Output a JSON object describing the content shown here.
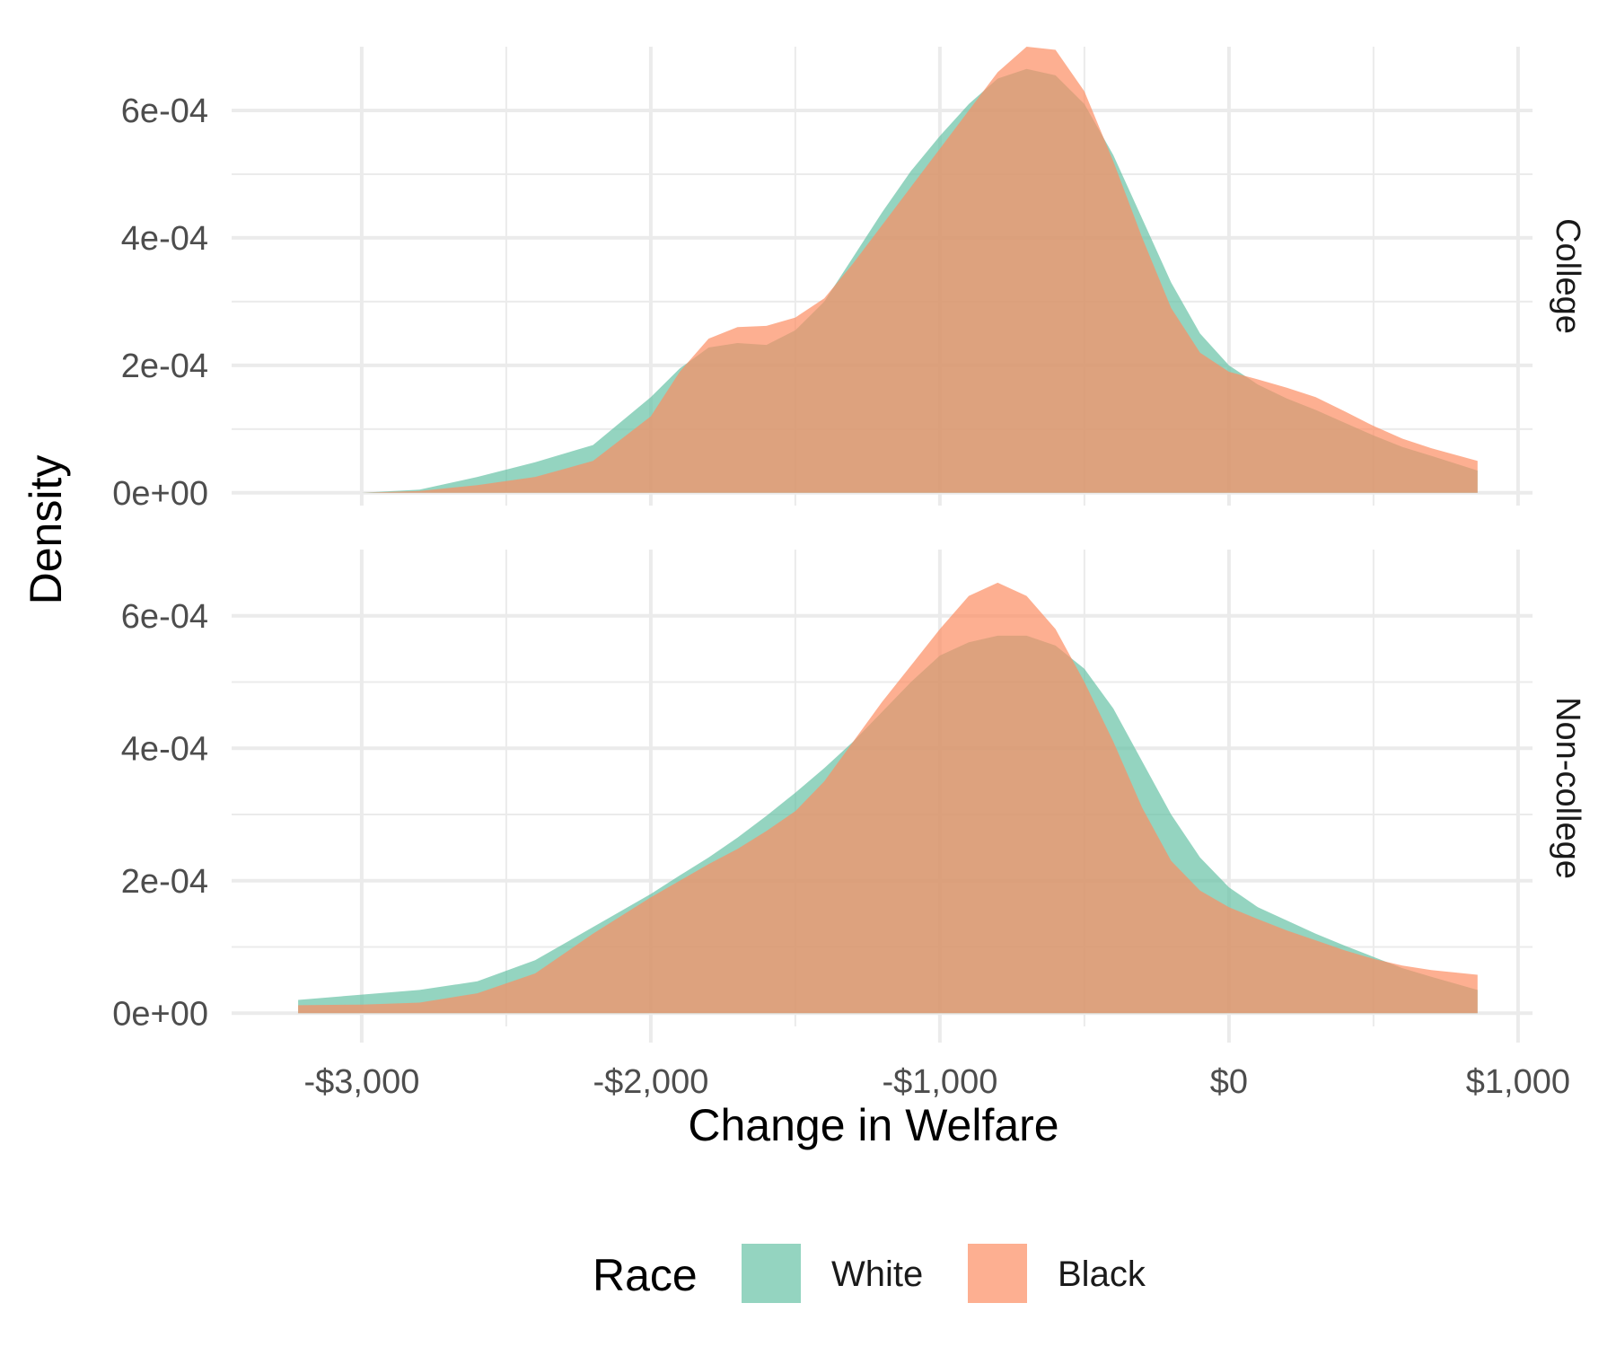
{
  "chart_data": {
    "type": "area",
    "subtype": "density",
    "xlabel": "Change in Welfare",
    "ylabel": "Density",
    "xlim": [
      -3450,
      1050
    ],
    "ylim": [
      -2e-05,
      0.0007
    ],
    "x_ticks": [
      -3000,
      -2000,
      -1000,
      0,
      1000
    ],
    "x_tick_labels": [
      "-$3,000",
      "-$2,000",
      "-$1,000",
      "$0",
      "$1,000"
    ],
    "y_ticks": [
      0,
      0.0002,
      0.0004,
      0.0006
    ],
    "y_tick_labels": [
      "0e+00",
      "2e-04",
      "4e-04",
      "6e-04"
    ],
    "legend": {
      "title": "Race",
      "position": "bottom",
      "entries": [
        {
          "label": "White",
          "color": "#66C2A5"
        },
        {
          "label": "Black",
          "color": "#FC8D62"
        }
      ]
    },
    "fill_alpha": 0.7,
    "facets": [
      {
        "label": "College",
        "series": [
          {
            "name": "White",
            "x": [
              -3000,
              -2800,
              -2600,
              -2400,
              -2200,
              -2000,
              -1900,
              -1800,
              -1700,
              -1600,
              -1500,
              -1400,
              -1300,
              -1200,
              -1100,
              -1000,
              -900,
              -800,
              -700,
              -600,
              -500,
              -400,
              -300,
              -200,
              -100,
              0,
              100,
              200,
              300,
              400,
              500,
              600,
              700,
              860
            ],
            "y": [
              0.0,
              5e-06,
              2.5e-05,
              4.8e-05,
              7.5e-05,
              0.00015,
              0.000195,
              0.000228,
              0.000235,
              0.000232,
              0.000255,
              0.0003,
              0.00037,
              0.00044,
              0.000505,
              0.00056,
              0.00061,
              0.00065,
              0.000665,
              0.000655,
              0.00061,
              0.00053,
              0.00043,
              0.00033,
              0.00025,
              0.0002,
              0.00017,
              0.000148,
              0.00013,
              0.00011,
              9e-05,
              7.2e-05,
              5.8e-05,
              3.5e-05
            ]
          },
          {
            "name": "Black",
            "x": [
              -3000,
              -2800,
              -2600,
              -2400,
              -2200,
              -2000,
              -1900,
              -1800,
              -1700,
              -1600,
              -1500,
              -1400,
              -1300,
              -1200,
              -1100,
              -1000,
              -900,
              -800,
              -700,
              -600,
              -500,
              -400,
              -300,
              -200,
              -100,
              0,
              100,
              200,
              300,
              400,
              500,
              600,
              700,
              860
            ],
            "y": [
              0.0,
              3e-06,
              1.2e-05,
              2.5e-05,
              5e-05,
              0.00012,
              0.00019,
              0.000242,
              0.00026,
              0.000262,
              0.000275,
              0.000305,
              0.00036,
              0.00042,
              0.00048,
              0.00054,
              0.0006,
              0.00066,
              0.0007,
              0.000695,
              0.00063,
              0.00052,
              0.0004,
              0.00029,
              0.00022,
              0.00019,
              0.000178,
              0.000165,
              0.00015,
              0.000128,
              0.000105,
              8.5e-05,
              7e-05,
              5e-05
            ]
          }
        ]
      },
      {
        "label": "Non-college",
        "series": [
          {
            "name": "White",
            "x": [
              -3220,
              -3000,
              -2800,
              -2600,
              -2400,
              -2200,
              -2000,
              -1900,
              -1800,
              -1700,
              -1600,
              -1500,
              -1400,
              -1300,
              -1200,
              -1100,
              -1000,
              -900,
              -800,
              -700,
              -600,
              -500,
              -400,
              -300,
              -200,
              -100,
              0,
              100,
              200,
              300,
              400,
              500,
              600,
              700,
              860
            ],
            "y": [
              2e-05,
              2.8e-05,
              3.5e-05,
              4.8e-05,
              8e-05,
              0.00013,
              0.00018,
              0.000208,
              0.000235,
              0.000265,
              0.000298,
              0.000333,
              0.00037,
              0.00041,
              0.000455,
              0.0005,
              0.00054,
              0.00056,
              0.00057,
              0.00057,
              0.000555,
              0.00052,
              0.00046,
              0.00038,
              0.0003,
              0.000235,
              0.00019,
              0.00016,
              0.00014,
              0.00012,
              0.000102,
              8.5e-05,
              6.8e-05,
              5.5e-05,
              3.5e-05
            ]
          },
          {
            "name": "Black",
            "x": [
              -3220,
              -3000,
              -2800,
              -2600,
              -2400,
              -2200,
              -2000,
              -1900,
              -1800,
              -1700,
              -1600,
              -1500,
              -1400,
              -1300,
              -1200,
              -1100,
              -1000,
              -900,
              -800,
              -700,
              -600,
              -500,
              -400,
              -300,
              -200,
              -100,
              0,
              100,
              200,
              300,
              400,
              500,
              600,
              700,
              860
            ],
            "y": [
              1.2e-05,
              1.3e-05,
              1.6e-05,
              3e-05,
              6e-05,
              0.00012,
              0.000175,
              0.0002,
              0.000225,
              0.000248,
              0.000275,
              0.000305,
              0.00035,
              0.00041,
              0.00047,
              0.000525,
              0.00058,
              0.00063,
              0.00065,
              0.00063,
              0.00058,
              0.0005,
              0.00041,
              0.00031,
              0.00023,
              0.000185,
              0.00016,
              0.000142,
              0.000125,
              0.00011,
              9.5e-05,
              8.2e-05,
              7.2e-05,
              6.5e-05,
              5.8e-05
            ]
          }
        ]
      }
    ]
  }
}
